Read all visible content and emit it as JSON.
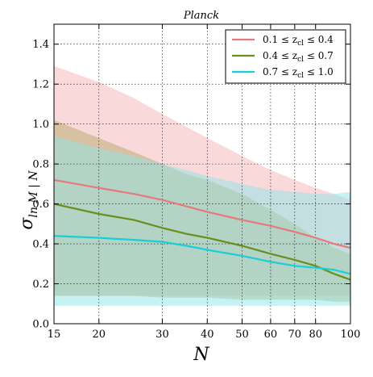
{
  "chart_data": {
    "type": "line",
    "title": "Planck",
    "xlabel": "N",
    "ylabel": "σ_{ln M | N}",
    "xscale": "log",
    "xlim": [
      15,
      100
    ],
    "ylim": [
      0.0,
      1.5
    ],
    "xticks": [
      15,
      20,
      30,
      40,
      50,
      60,
      70,
      80,
      100
    ],
    "xtick_labels": [
      "15",
      "20",
      "30",
      "40",
      "50",
      "60",
      "70",
      "80",
      "100"
    ],
    "yticks": [
      0.0,
      0.2,
      0.4,
      0.6,
      0.8,
      1.0,
      1.2,
      1.4
    ],
    "ytick_labels": [
      "0.0",
      "0.2",
      "0.4",
      "0.6",
      "0.8",
      "1.0",
      "1.2",
      "1.4"
    ],
    "grid": true,
    "legend_position": "top-right",
    "series": [
      {
        "name": "0.1 ≤ z_cl ≤ 0.4",
        "legend_label": "0.1 ≤ z",
        "legend_sub": "cl",
        "legend_rest": " ≤ 0.4",
        "color": "#e8797a",
        "band_color": "#f5b3b5",
        "x": [
          15,
          20,
          25,
          30,
          40,
          50,
          60,
          70,
          80,
          90,
          100
        ],
        "y": [
          0.72,
          0.68,
          0.65,
          0.62,
          0.56,
          0.52,
          0.49,
          0.46,
          0.43,
          0.4,
          0.38
        ],
        "upper": [
          1.29,
          1.21,
          1.13,
          1.05,
          0.93,
          0.84,
          0.77,
          0.72,
          0.68,
          0.65,
          0.62
        ],
        "lower": [
          0.14,
          0.14,
          0.14,
          0.14,
          0.14,
          0.14,
          0.14,
          0.14,
          0.14,
          0.14,
          0.14
        ]
      },
      {
        "name": "0.4 ≤ z_cl ≤ 0.7",
        "legend_label": "0.4 ≤ z",
        "legend_sub": "cl",
        "legend_rest": " ≤ 0.7",
        "color": "#6a8e1c",
        "band_color": "#b5a96b",
        "x": [
          15,
          20,
          25,
          30,
          35,
          40,
          50,
          60,
          70,
          80,
          90,
          100
        ],
        "y": [
          0.6,
          0.55,
          0.52,
          0.48,
          0.45,
          0.43,
          0.39,
          0.35,
          0.32,
          0.29,
          0.25,
          0.22
        ],
        "upper": [
          1.02,
          0.93,
          0.86,
          0.8,
          0.75,
          0.72,
          0.65,
          0.57,
          0.5,
          0.43,
          0.38,
          0.35
        ],
        "lower": [
          0.14,
          0.14,
          0.14,
          0.13,
          0.13,
          0.13,
          0.12,
          0.12,
          0.12,
          0.12,
          0.11,
          0.11
        ]
      },
      {
        "name": "0.7 ≤ z_cl ≤ 1.0",
        "legend_label": "0.7 ≤ z",
        "legend_sub": "cl",
        "legend_rest": " ≤ 1.0",
        "color": "#17cfd6",
        "band_color": "#8ee5e8",
        "x": [
          15,
          20,
          25,
          30,
          35,
          40,
          50,
          60,
          70,
          80,
          90,
          100
        ],
        "y": [
          0.44,
          0.43,
          0.42,
          0.41,
          0.39,
          0.37,
          0.34,
          0.31,
          0.29,
          0.28,
          0.27,
          0.25
        ],
        "upper": [
          0.94,
          0.88,
          0.84,
          0.8,
          0.77,
          0.74,
          0.7,
          0.67,
          0.66,
          0.65,
          0.65,
          0.66
        ],
        "lower": [
          0.09,
          0.09,
          0.09,
          0.09,
          0.09,
          0.09,
          0.09,
          0.09,
          0.09,
          0.09,
          0.09,
          0.09
        ]
      }
    ]
  }
}
